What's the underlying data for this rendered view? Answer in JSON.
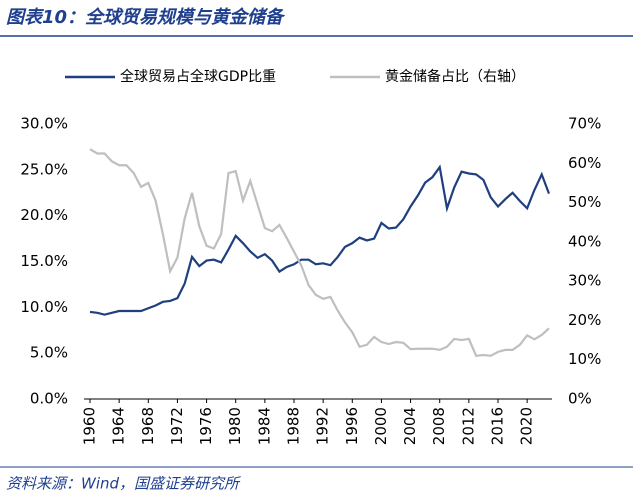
{
  "chart_data": {
    "type": "line",
    "title": "图表10：全球贸易规模与黄金储备",
    "source": "资料来源：Wind，国盛证券研究所",
    "x": [
      1960,
      1961,
      1962,
      1963,
      1964,
      1965,
      1966,
      1967,
      1968,
      1969,
      1970,
      1971,
      1972,
      1973,
      1974,
      1975,
      1976,
      1977,
      1978,
      1979,
      1980,
      1981,
      1982,
      1983,
      1984,
      1985,
      1986,
      1987,
      1988,
      1989,
      1990,
      1991,
      1992,
      1993,
      1994,
      1995,
      1996,
      1997,
      1998,
      1999,
      2000,
      2001,
      2002,
      2003,
      2004,
      2005,
      2006,
      2007,
      2008,
      2009,
      2010,
      2011,
      2012,
      2013,
      2014,
      2015,
      2016,
      2017,
      2018,
      2019,
      2020,
      2021,
      2022,
      2023
    ],
    "series": [
      {
        "name": "全球贸易占全球GDP比重",
        "color": "#1f3f7f",
        "values": [
          9.5,
          9.4,
          9.2,
          9.4,
          9.6,
          9.6,
          9.6,
          9.6,
          9.9,
          10.2,
          10.6,
          10.7,
          11.0,
          12.6,
          15.5,
          14.5,
          15.1,
          15.2,
          14.9,
          16.3,
          17.8,
          17.0,
          16.1,
          15.4,
          15.8,
          15.1,
          13.9,
          14.4,
          14.7,
          15.2,
          15.2,
          14.7,
          14.8,
          14.6,
          15.5,
          16.6,
          17.0,
          17.6,
          17.3,
          17.5,
          19.2,
          18.6,
          18.7,
          19.6,
          21.0,
          22.2,
          23.6,
          24.2,
          25.3,
          20.8,
          23.1,
          24.8,
          24.6,
          24.5,
          23.9,
          22.0,
          21.0,
          21.8,
          22.5,
          21.6,
          20.8,
          22.8,
          24.5,
          22.4
        ]
      },
      {
        "name": "黄金储备占比（右轴）",
        "color": "#bfbfbf",
        "axis": "y2",
        "values": [
          63.6,
          62.5,
          62.5,
          60.5,
          59.5,
          59.5,
          57.5,
          54,
          55,
          50.5,
          42,
          32.5,
          36,
          46,
          52.5,
          44,
          39,
          38.3,
          42,
          57.5,
          58,
          50.5,
          55.5,
          49.5,
          43.5,
          42.7,
          44.3,
          41,
          37.5,
          34,
          29,
          26.5,
          25.5,
          26,
          22.5,
          19.5,
          17,
          13.3,
          13.8,
          15.8,
          14.5,
          14,
          14.5,
          14.3,
          12.7,
          12.8,
          12.8,
          12.8,
          12.5,
          13.3,
          15.3,
          15,
          15.3,
          11,
          11.2,
          11,
          12,
          12.5,
          12.5,
          13.8,
          16.2,
          15.2,
          16.3,
          18
        ]
      }
    ],
    "xlim": [
      1960,
      2023
    ],
    "xticks": [
      1960,
      1964,
      1968,
      1972,
      1976,
      1980,
      1984,
      1988,
      1992,
      1996,
      2000,
      2004,
      2008,
      2012,
      2016,
      2020
    ],
    "ylim": [
      0,
      30
    ],
    "yticks": [
      {
        "value": 0,
        "label": "0.0%"
      },
      {
        "value": 5,
        "label": "5.0%"
      },
      {
        "value": 10,
        "label": "10.0%"
      },
      {
        "value": 15,
        "label": "15.0%"
      },
      {
        "value": 20,
        "label": "20.0%"
      },
      {
        "value": 25,
        "label": "25.0%"
      },
      {
        "value": 30,
        "label": "30.0%"
      }
    ],
    "y2lim": [
      0,
      70
    ],
    "y2ticks": [
      {
        "value": 0,
        "label": "0%"
      },
      {
        "value": 10,
        "label": "10%"
      },
      {
        "value": 20,
        "label": "20%"
      },
      {
        "value": 30,
        "label": "30%"
      },
      {
        "value": 40,
        "label": "40%"
      },
      {
        "value": 50,
        "label": "50%"
      },
      {
        "value": 60,
        "label": "60%"
      },
      {
        "value": 70,
        "label": "70%"
      }
    ],
    "legend": "top"
  }
}
